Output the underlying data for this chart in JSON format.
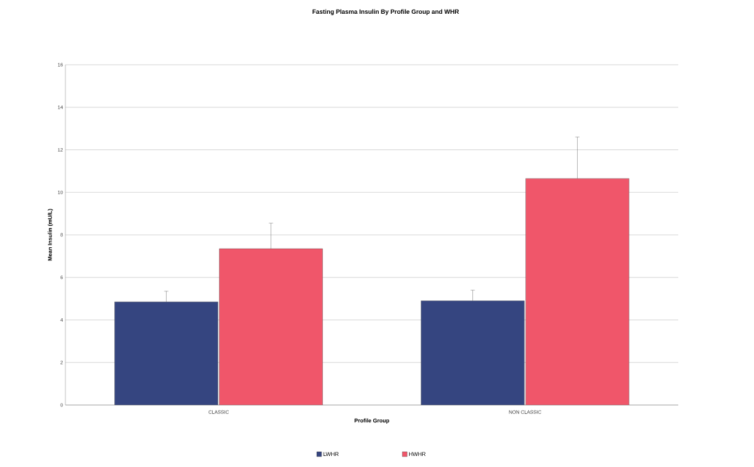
{
  "chart_data": {
    "type": "bar",
    "title": "Fasting Plasma Insulin By Profile Group and WHR",
    "xlabel": "Profile Group",
    "ylabel": "Mean Insulin (mU/L)",
    "categories": [
      "CLASSIC",
      "NON CLASSIC"
    ],
    "series": [
      {
        "name": "LWHR",
        "color": "#354580",
        "values": [
          4.85,
          4.9
        ],
        "errors": [
          0.5,
          0.5
        ]
      },
      {
        "name": "HWHR",
        "color": "#f0566a",
        "values": [
          7.35,
          10.65
        ],
        "errors": [
          1.2,
          1.95
        ]
      }
    ],
    "ylim": [
      0,
      16
    ],
    "yticks": [
      0,
      2,
      4,
      6,
      8,
      10,
      12,
      14,
      16
    ],
    "grid": "y",
    "legend": "bottom"
  }
}
